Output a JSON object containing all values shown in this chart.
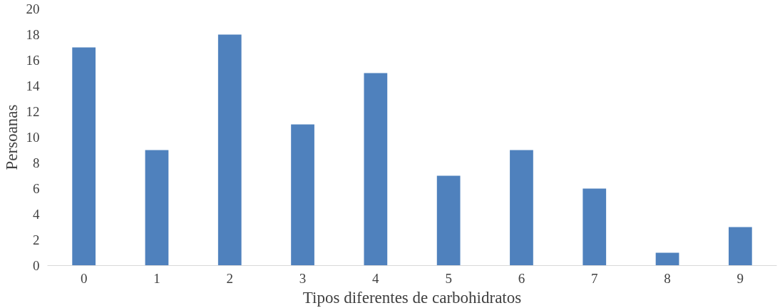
{
  "chart_data": {
    "type": "bar",
    "xlabel": "Tipos diferentes de carbohidratos",
    "ylabel": "Persoanas",
    "categories": [
      "0",
      "1",
      "2",
      "3",
      "4",
      "5",
      "6",
      "7",
      "8",
      "9"
    ],
    "values": [
      17,
      9,
      18,
      11,
      15,
      7,
      9,
      6,
      1,
      3
    ],
    "color": "#4f81bd",
    "ylim": [
      0,
      20
    ],
    "yticks": [
      0,
      2,
      4,
      6,
      8,
      10,
      12,
      14,
      16,
      18,
      20
    ],
    "grid": false
  }
}
